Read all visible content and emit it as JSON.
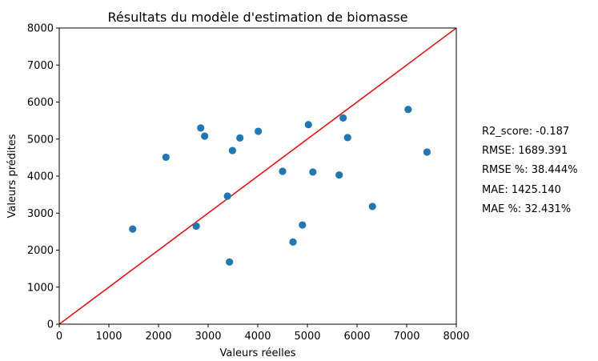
{
  "chart_data": {
    "type": "scatter",
    "title": "Résultats du modèle d'estimation de biomasse",
    "xlabel": "Valeurs réelles",
    "ylabel": "Valeurs prédites",
    "xlim": [
      0,
      8000
    ],
    "ylim": [
      0,
      8000
    ],
    "x_ticks": [
      "0",
      "1000",
      "2000",
      "3000",
      "4000",
      "5000",
      "6000",
      "7000",
      "8000"
    ],
    "y_ticks": [
      "0",
      "1000",
      "2000",
      "3000",
      "4000",
      "5000",
      "6000",
      "7000",
      "8000"
    ],
    "grid": false,
    "point_color": "#1f77b4",
    "reference_line": {
      "from": [
        0,
        0
      ],
      "to": [
        8000,
        8000
      ],
      "color": "#ff0000"
    },
    "points": [
      {
        "x": 1480,
        "y": 2570
      },
      {
        "x": 2150,
        "y": 4510
      },
      {
        "x": 2760,
        "y": 2650
      },
      {
        "x": 2850,
        "y": 5300
      },
      {
        "x": 2930,
        "y": 5080
      },
      {
        "x": 3390,
        "y": 3460
      },
      {
        "x": 3430,
        "y": 1680
      },
      {
        "x": 3490,
        "y": 4690
      },
      {
        "x": 3640,
        "y": 5030
      },
      {
        "x": 4010,
        "y": 5210
      },
      {
        "x": 4500,
        "y": 4130
      },
      {
        "x": 4710,
        "y": 2220
      },
      {
        "x": 4900,
        "y": 2680
      },
      {
        "x": 5020,
        "y": 5390
      },
      {
        "x": 5110,
        "y": 4110
      },
      {
        "x": 5640,
        "y": 4030
      },
      {
        "x": 5720,
        "y": 5570
      },
      {
        "x": 5810,
        "y": 5040
      },
      {
        "x": 6310,
        "y": 3180
      },
      {
        "x": 7030,
        "y": 5800
      },
      {
        "x": 7410,
        "y": 4650
      }
    ]
  },
  "metrics": [
    "R2_score: -0.187",
    "RMSE: 1689.391",
    "RMSE %: 38.444%",
    "MAE: 1425.140",
    "MAE %: 32.431%"
  ]
}
